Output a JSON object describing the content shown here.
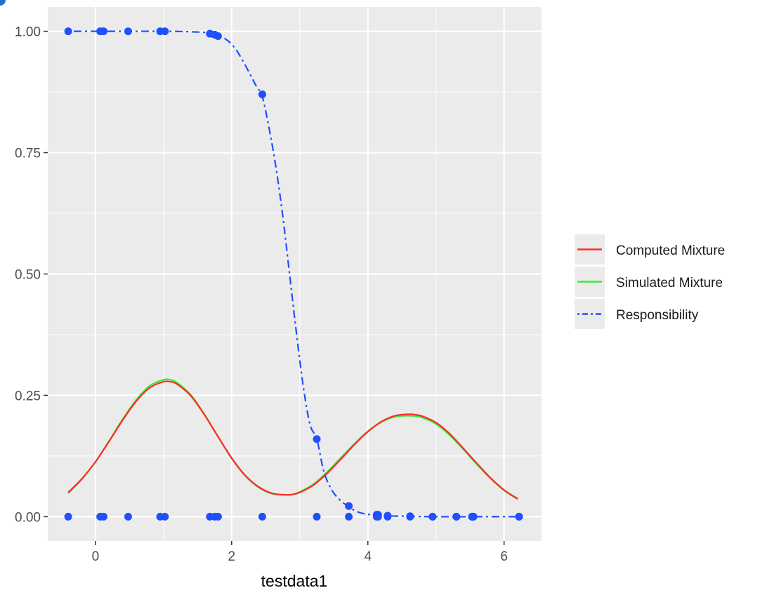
{
  "chart_data": {
    "type": "line",
    "xlabel": "testdata1",
    "ylabel": "",
    "xlim": [
      -0.7,
      6.55
    ],
    "ylim": [
      -0.05,
      1.05
    ],
    "x_ticks": [
      {
        "value": 0,
        "label": "0"
      },
      {
        "value": 2,
        "label": "2"
      },
      {
        "value": 4,
        "label": "4"
      },
      {
        "value": 6,
        "label": "6"
      }
    ],
    "y_ticks": [
      {
        "value": 0,
        "label": "0.00"
      },
      {
        "value": 0.25,
        "label": "0.25"
      },
      {
        "value": 0.5,
        "label": "0.50"
      },
      {
        "value": 0.75,
        "label": "0.75"
      },
      {
        "value": 1,
        "label": "1.00"
      }
    ],
    "grid": true,
    "legend_position": "right",
    "colors": {
      "panel": "#ebebeb",
      "grid": "#ffffff",
      "computed": "#ff2a2a",
      "simulated": "#33ee33",
      "responsibility": "#1f4fff"
    },
    "series": [
      {
        "name": "Computed Mixture",
        "style": "solid",
        "color": "#ff2a2a",
        "x": [
          -0.4,
          -0.2,
          0.0,
          0.2,
          0.4,
          0.6,
          0.8,
          1.0,
          1.1,
          1.2,
          1.4,
          1.6,
          1.8,
          2.0,
          2.2,
          2.4,
          2.6,
          2.8,
          2.9,
          3.0,
          3.2,
          3.4,
          3.6,
          3.8,
          4.0,
          4.2,
          4.4,
          4.6,
          4.7,
          4.8,
          5.0,
          5.2,
          5.4,
          5.6,
          5.8,
          6.0,
          6.2
        ],
        "y": [
          0.05,
          0.078,
          0.113,
          0.155,
          0.199,
          0.238,
          0.266,
          0.278,
          0.278,
          0.273,
          0.249,
          0.21,
          0.165,
          0.121,
          0.085,
          0.061,
          0.048,
          0.045,
          0.046,
          0.05,
          0.065,
          0.089,
          0.118,
          0.148,
          0.175,
          0.196,
          0.208,
          0.211,
          0.21,
          0.207,
          0.194,
          0.171,
          0.141,
          0.11,
          0.08,
          0.055,
          0.037
        ]
      },
      {
        "name": "Simulated Mixture",
        "style": "solid",
        "color": "#33ee33",
        "x": [
          -0.4,
          -0.2,
          0.0,
          0.2,
          0.4,
          0.6,
          0.8,
          1.0,
          1.1,
          1.2,
          1.4,
          1.6,
          1.8,
          2.0,
          2.2,
          2.4,
          2.6,
          2.8,
          2.9,
          3.0,
          3.2,
          3.4,
          3.6,
          3.8,
          4.0,
          4.2,
          4.4,
          4.6,
          4.7,
          4.8,
          5.0,
          5.2,
          5.4,
          5.6,
          5.8,
          6.0,
          6.2
        ],
        "y": [
          0.048,
          0.077,
          0.113,
          0.156,
          0.201,
          0.241,
          0.27,
          0.282,
          0.282,
          0.276,
          0.251,
          0.211,
          0.165,
          0.12,
          0.084,
          0.06,
          0.047,
          0.045,
          0.046,
          0.051,
          0.067,
          0.092,
          0.121,
          0.15,
          0.176,
          0.195,
          0.206,
          0.208,
          0.207,
          0.204,
          0.191,
          0.168,
          0.139,
          0.108,
          0.079,
          0.054,
          0.036
        ]
      },
      {
        "name": "Responsibility",
        "style": "dotdash",
        "color": "#1f4fff",
        "x": [
          -0.4,
          0.0,
          0.5,
          1.0,
          1.4,
          1.7,
          1.9,
          2.05,
          2.2,
          2.35,
          2.45,
          2.55,
          2.65,
          2.75,
          2.85,
          2.95,
          3.05,
          3.15,
          3.25,
          3.35,
          3.45,
          3.55,
          3.7,
          3.85,
          4.0,
          4.2,
          4.5,
          5.0,
          5.5,
          6.2
        ],
        "y": [
          1.0,
          1.0,
          1.0,
          1.0,
          0.999,
          0.996,
          0.985,
          0.965,
          0.93,
          0.89,
          0.865,
          0.8,
          0.72,
          0.62,
          0.5,
          0.38,
          0.27,
          0.19,
          0.16,
          0.095,
          0.06,
          0.04,
          0.022,
          0.01,
          0.005,
          0.002,
          0.001,
          0.0,
          0.0,
          0.0
        ]
      }
    ],
    "points": {
      "name": "Responsibility",
      "color": "#1f4fff",
      "x": [
        -0.4,
        0.07,
        0.12,
        0.48,
        0.95,
        1.02,
        1.68,
        1.75,
        1.8,
        2.45,
        3.25,
        3.72,
        4.13,
        4.15,
        4.29,
        4.62,
        4.95,
        5.3,
        5.53,
        5.55,
        6.22
      ],
      "y": [
        1.0,
        1.0,
        1.0,
        1.0,
        1.0,
        1.0,
        0.995,
        0.993,
        0.99,
        0.87,
        0.16,
        0.022,
        0.004,
        0.004,
        0.002,
        0.001,
        0.0,
        0.0,
        0.0,
        0.0,
        0.0
      ]
    },
    "rug": [
      -0.4,
      0.07,
      0.12,
      0.48,
      0.95,
      1.02,
      1.68,
      1.75,
      1.8,
      2.45,
      3.25,
      3.72,
      4.13,
      4.15,
      4.29,
      4.62,
      4.95,
      5.3,
      5.53,
      5.55,
      6.22
    ]
  }
}
